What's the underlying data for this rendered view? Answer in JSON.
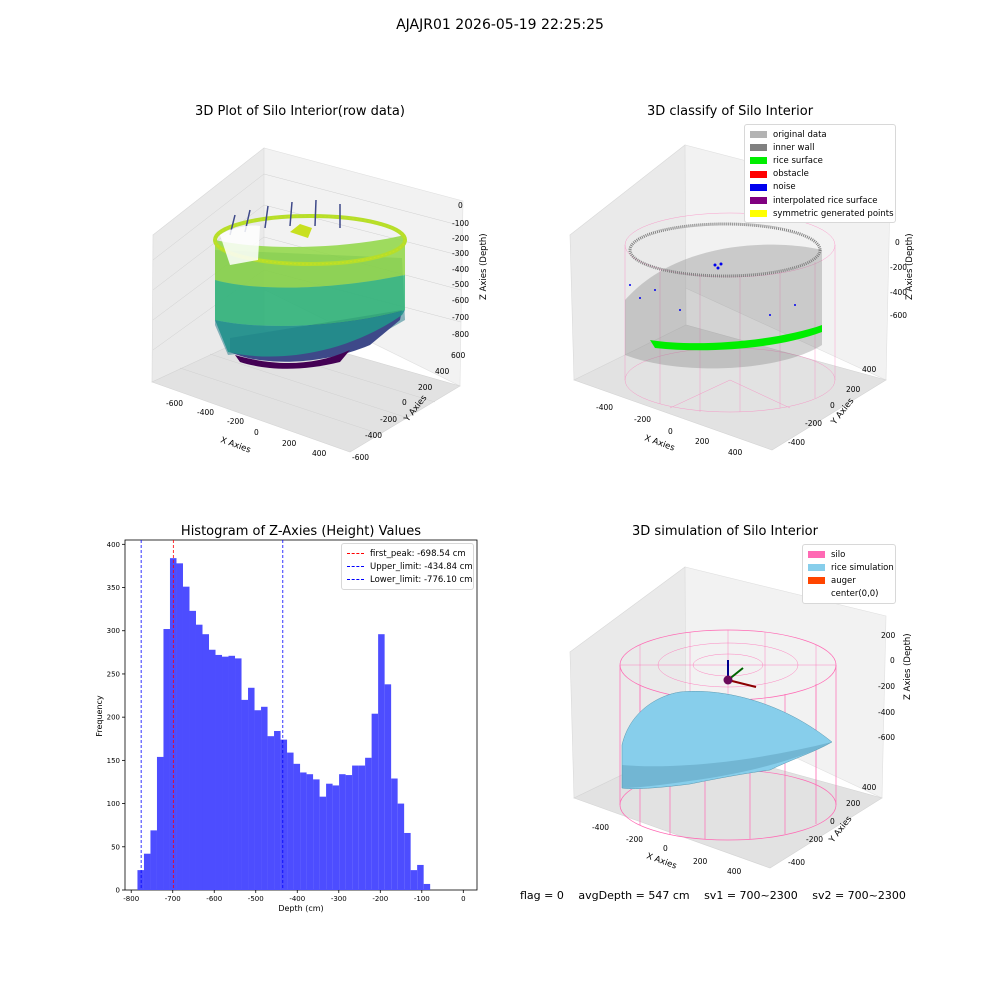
{
  "suptitle": "AJAJR01 2026-05-19 22:25:25",
  "panels": {
    "raw": {
      "title": "3D Plot of Silo Interior(row data)",
      "xlabel": "X Axies",
      "ylabel": "Y Axies",
      "zlabel": "Z Axies (Depth)",
      "xticks": [
        "-600",
        "-400",
        "-200",
        "0",
        "200",
        "400"
      ],
      "yticks": [
        "600",
        "400",
        "200",
        "0",
        "-200",
        "-400",
        "-600"
      ],
      "zticks": [
        "0",
        "-100",
        "-200",
        "-300",
        "-400",
        "-500",
        "-600",
        "-700",
        "-800"
      ],
      "colormap": [
        "#fde725",
        "#b5de2b",
        "#6ece58",
        "#35b779",
        "#1f9e89",
        "#26828e",
        "#31688e",
        "#3e4989",
        "#482878",
        "#440154"
      ]
    },
    "classify": {
      "title": "3D classify of Silo Interior",
      "xlabel": "X Axies",
      "ylabel": "Y Axies",
      "zlabel": "Z Axies (Depth)",
      "xticks": [
        "-400",
        "-200",
        "0",
        "200",
        "400"
      ],
      "yticks": [
        "400",
        "200",
        "0",
        "-200",
        "-400"
      ],
      "zticks": [
        "0",
        "-200",
        "-400",
        "-600"
      ],
      "legend": [
        {
          "label": "original data",
          "color": "#b3b3b3"
        },
        {
          "label": "inner wall",
          "color": "#808080"
        },
        {
          "label": "rice surface",
          "color": "#00ee00"
        },
        {
          "label": "obstacle",
          "color": "#ff0000"
        },
        {
          "label": "noise",
          "color": "#0000ee"
        },
        {
          "label": "interpolated rice surface",
          "color": "#800080"
        },
        {
          "label": "symmetric generated points",
          "color": "#ffff00"
        }
      ]
    },
    "simulation": {
      "title": "3D simulation of Silo Interior",
      "xlabel": "X Axies",
      "ylabel": "Y Axies",
      "zlabel": "Z Axies (Depth)",
      "xticks": [
        "-400",
        "-200",
        "0",
        "200",
        "400"
      ],
      "yticks": [
        "400",
        "200",
        "0",
        "-200",
        "-400"
      ],
      "zticks": [
        "200",
        "0",
        "-200",
        "-400",
        "-600"
      ],
      "legend": [
        {
          "label": "silo",
          "color": "#ff69b4"
        },
        {
          "label": "rice simulation",
          "color": "#87ceeb"
        },
        {
          "label": "auger",
          "color": "#ff4500"
        },
        {
          "label": "center(0,0)",
          "color": "#ffffff"
        }
      ]
    }
  },
  "footer": {
    "flag": "flag = 0",
    "avg_depth": "avgDepth = 547 cm",
    "sv1": "sv1 = 700~2300",
    "sv2": "sv2 = 700~2300"
  },
  "chart_data": {
    "type": "bar",
    "title": "Histogram of Z-Axies (Height) Values",
    "xlabel": "Depth (cm)",
    "ylabel": "Frequency",
    "xlim": [
      -815,
      33
    ],
    "ylim": [
      0,
      405
    ],
    "xticks": [
      -800,
      -700,
      -600,
      -500,
      -400,
      -300,
      -200,
      -100,
      0
    ],
    "yticks": [
      0,
      50,
      100,
      150,
      200,
      250,
      300,
      350,
      400
    ],
    "bar_color": "#4d4dff",
    "bin_start": -785,
    "bin_width": 15.67,
    "values": [
      23,
      42,
      69,
      154,
      302,
      384,
      378,
      351,
      323,
      307,
      296,
      278,
      272,
      270,
      271,
      268,
      220,
      234,
      208,
      212,
      178,
      184,
      174,
      159,
      146,
      136,
      134,
      128,
      108,
      123,
      121,
      134,
      133,
      144,
      144,
      153,
      204,
      296,
      238,
      129,
      100,
      66,
      23,
      29,
      7
    ],
    "vlines": [
      {
        "label": "first_peak: -698.54 cm",
        "x": -698.54,
        "color": "#ff0000"
      },
      {
        "label": "Upper_limit: -434.84 cm",
        "x": -434.84,
        "color": "#0000ff"
      },
      {
        "label": "Lower_limit: -776.10 cm",
        "x": -776.1,
        "color": "#0000ff"
      }
    ]
  }
}
